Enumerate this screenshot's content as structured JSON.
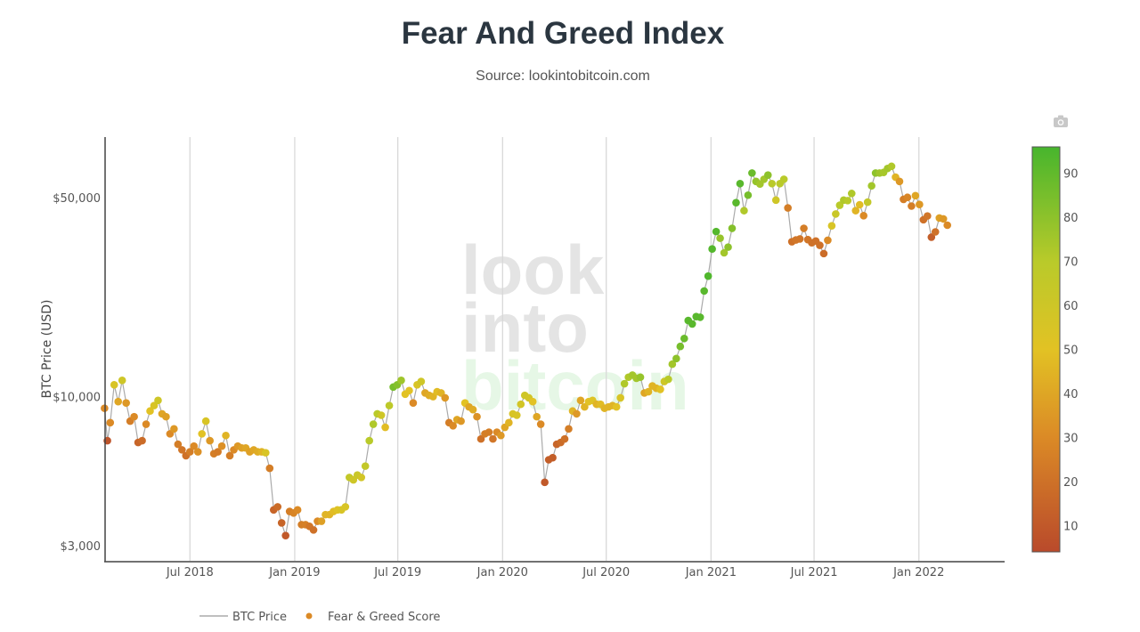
{
  "title": "Fear And Greed Index",
  "subtitle": "Source: lookintobitcoin.com",
  "watermark": [
    "look",
    "into",
    "bitcoin"
  ],
  "toolbar": {
    "icon": "camera-icon"
  },
  "legend": {
    "line": "BTC Price",
    "dots": "Fear & Greed Score"
  },
  "chart_data": {
    "type": "scatter",
    "title": "Fear And Greed Index",
    "ylabel": "BTC Price (USD)",
    "xlabel": "",
    "yscale": "log",
    "xlim": [
      "2018-02-02",
      "2022-05-30"
    ],
    "ylim": [
      2650,
      81000
    ],
    "grid": "vertical gridlines at x ticks",
    "legend_placement": "bottom",
    "x_ticks": [
      {
        "date": "2018-07-01",
        "label": "Jul 2018"
      },
      {
        "date": "2019-01-01",
        "label": "Jan 2019"
      },
      {
        "date": "2019-07-01",
        "label": "Jul 2019"
      },
      {
        "date": "2020-01-01",
        "label": "Jan 2020"
      },
      {
        "date": "2020-07-01",
        "label": "Jul 2020"
      },
      {
        "date": "2021-01-01",
        "label": "Jan 2021"
      },
      {
        "date": "2021-07-01",
        "label": "Jul 2021"
      },
      {
        "date": "2022-01-01",
        "label": "Jan 2022"
      }
    ],
    "y_ticks": [
      {
        "value": 3000,
        "label": "$3,000"
      },
      {
        "value": 10000,
        "label": "$10,000"
      },
      {
        "value": 50000,
        "label": "$50,000"
      }
    ],
    "colorbar": {
      "range": [
        4,
        96
      ],
      "ticks": [
        10,
        20,
        30,
        40,
        50,
        60,
        70,
        80,
        90
      ],
      "colorscale": [
        [
          4,
          "#b94a2b"
        ],
        [
          30,
          "#db8a26"
        ],
        [
          50,
          "#e2c224"
        ],
        [
          70,
          "#b9ca2a"
        ],
        [
          96,
          "#47b52d"
        ]
      ]
    },
    "line_color": "#aaaaaa",
    "series_fields": [
      "date",
      "btc_price",
      "fear_greed_score"
    ],
    "points": [
      [
        "2018-02-01",
        9100,
        30
      ],
      [
        "2018-02-06",
        7000,
        8
      ],
      [
        "2018-02-11",
        8100,
        30
      ],
      [
        "2018-02-18",
        11000,
        55
      ],
      [
        "2018-02-25",
        9600,
        40
      ],
      [
        "2018-03-04",
        11400,
        60
      ],
      [
        "2018-03-11",
        9500,
        35
      ],
      [
        "2018-03-18",
        8200,
        25
      ],
      [
        "2018-03-25",
        8500,
        30
      ],
      [
        "2018-04-01",
        6900,
        15
      ],
      [
        "2018-04-08",
        7000,
        18
      ],
      [
        "2018-04-15",
        8000,
        30
      ],
      [
        "2018-04-22",
        8900,
        50
      ],
      [
        "2018-04-29",
        9300,
        55
      ],
      [
        "2018-05-06",
        9700,
        60
      ],
      [
        "2018-05-13",
        8700,
        40
      ],
      [
        "2018-05-20",
        8500,
        38
      ],
      [
        "2018-05-27",
        7400,
        30
      ],
      [
        "2018-06-03",
        7700,
        35
      ],
      [
        "2018-06-10",
        6800,
        25
      ],
      [
        "2018-06-17",
        6500,
        22
      ],
      [
        "2018-06-24",
        6200,
        20
      ],
      [
        "2018-07-01",
        6400,
        25
      ],
      [
        "2018-07-08",
        6700,
        30
      ],
      [
        "2018-07-15",
        6400,
        32
      ],
      [
        "2018-07-22",
        7400,
        50
      ],
      [
        "2018-07-29",
        8200,
        55
      ],
      [
        "2018-08-05",
        7000,
        35
      ],
      [
        "2018-08-12",
        6300,
        25
      ],
      [
        "2018-08-19",
        6400,
        24
      ],
      [
        "2018-08-26",
        6700,
        32
      ],
      [
        "2018-09-02",
        7300,
        45
      ],
      [
        "2018-09-09",
        6200,
        25
      ],
      [
        "2018-09-16",
        6500,
        30
      ],
      [
        "2018-09-23",
        6700,
        35
      ],
      [
        "2018-09-30",
        6600,
        38
      ],
      [
        "2018-10-07",
        6600,
        40
      ],
      [
        "2018-10-14",
        6400,
        38
      ],
      [
        "2018-10-21",
        6500,
        40
      ],
      [
        "2018-10-28",
        6400,
        42
      ],
      [
        "2018-11-04",
        6400,
        45
      ],
      [
        "2018-11-11",
        6350,
        55
      ],
      [
        "2018-11-18",
        5600,
        25
      ],
      [
        "2018-11-25",
        4000,
        15
      ],
      [
        "2018-12-02",
        4100,
        18
      ],
      [
        "2018-12-09",
        3600,
        15
      ],
      [
        "2018-12-16",
        3250,
        10
      ],
      [
        "2018-12-23",
        3950,
        25
      ],
      [
        "2018-12-30",
        3900,
        28
      ],
      [
        "2019-01-06",
        4000,
        30
      ],
      [
        "2019-01-13",
        3550,
        25
      ],
      [
        "2019-01-20",
        3550,
        26
      ],
      [
        "2019-01-27",
        3500,
        22
      ],
      [
        "2019-02-03",
        3400,
        20
      ],
      [
        "2019-02-10",
        3650,
        30
      ],
      [
        "2019-02-17",
        3650,
        38
      ],
      [
        "2019-02-24",
        3850,
        45
      ],
      [
        "2019-03-03",
        3850,
        45
      ],
      [
        "2019-03-10",
        3950,
        48
      ],
      [
        "2019-03-17",
        4000,
        52
      ],
      [
        "2019-03-24",
        4000,
        55
      ],
      [
        "2019-03-31",
        4100,
        55
      ],
      [
        "2019-04-07",
        5200,
        65
      ],
      [
        "2019-04-14",
        5100,
        60
      ],
      [
        "2019-04-21",
        5300,
        62
      ],
      [
        "2019-04-28",
        5200,
        58
      ],
      [
        "2019-05-05",
        5700,
        65
      ],
      [
        "2019-05-12",
        7000,
        70
      ],
      [
        "2019-05-19",
        8000,
        72
      ],
      [
        "2019-05-26",
        8700,
        70
      ],
      [
        "2019-06-02",
        8600,
        60
      ],
      [
        "2019-06-09",
        7800,
        48
      ],
      [
        "2019-06-16",
        9300,
        68
      ],
      [
        "2019-06-23",
        10800,
        85
      ],
      [
        "2019-06-30",
        11000,
        82
      ],
      [
        "2019-07-07",
        11400,
        76
      ],
      [
        "2019-07-14",
        10200,
        50
      ],
      [
        "2019-07-21",
        10500,
        50
      ],
      [
        "2019-07-28",
        9500,
        30
      ],
      [
        "2019-08-04",
        11000,
        55
      ],
      [
        "2019-08-11",
        11300,
        60
      ],
      [
        "2019-08-18",
        10300,
        40
      ],
      [
        "2019-08-25",
        10100,
        42
      ],
      [
        "2019-09-01",
        10000,
        45
      ],
      [
        "2019-09-08",
        10400,
        48
      ],
      [
        "2019-09-15",
        10300,
        45
      ],
      [
        "2019-09-22",
        9900,
        35
      ],
      [
        "2019-09-29",
        8100,
        25
      ],
      [
        "2019-10-06",
        7900,
        30
      ],
      [
        "2019-10-13",
        8300,
        40
      ],
      [
        "2019-10-20",
        8200,
        35
      ],
      [
        "2019-10-27",
        9500,
        50
      ],
      [
        "2019-11-03",
        9200,
        40
      ],
      [
        "2019-11-10",
        9000,
        42
      ],
      [
        "2019-11-17",
        8500,
        33
      ],
      [
        "2019-11-24",
        7100,
        20
      ],
      [
        "2019-12-01",
        7400,
        25
      ],
      [
        "2019-12-08",
        7500,
        25
      ],
      [
        "2019-12-15",
        7100,
        22
      ],
      [
        "2019-12-22",
        7500,
        30
      ],
      [
        "2019-12-29",
        7300,
        35
      ],
      [
        "2020-01-05",
        7800,
        40
      ],
      [
        "2020-01-12",
        8100,
        45
      ],
      [
        "2020-01-19",
        8700,
        55
      ],
      [
        "2020-01-26",
        8600,
        55
      ],
      [
        "2020-02-02",
        9400,
        58
      ],
      [
        "2020-02-09",
        10100,
        60
      ],
      [
        "2020-02-16",
        9900,
        58
      ],
      [
        "2020-02-23",
        9600,
        50
      ],
      [
        "2020-03-01",
        8500,
        40
      ],
      [
        "2020-03-08",
        8000,
        30
      ],
      [
        "2020-03-15",
        5000,
        10
      ],
      [
        "2020-03-22",
        6000,
        12
      ],
      [
        "2020-03-29",
        6100,
        12
      ],
      [
        "2020-04-05",
        6800,
        15
      ],
      [
        "2020-04-12",
        6900,
        18
      ],
      [
        "2020-04-19",
        7100,
        20
      ],
      [
        "2020-04-26",
        7700,
        25
      ],
      [
        "2020-05-03",
        8900,
        45
      ],
      [
        "2020-05-10",
        8700,
        35
      ],
      [
        "2020-05-17",
        9700,
        40
      ],
      [
        "2020-05-24",
        9200,
        45
      ],
      [
        "2020-05-31",
        9600,
        50
      ],
      [
        "2020-06-07",
        9700,
        52
      ],
      [
        "2020-06-14",
        9400,
        45
      ],
      [
        "2020-06-21",
        9400,
        48
      ],
      [
        "2020-06-28",
        9100,
        45
      ],
      [
        "2020-07-05",
        9200,
        45
      ],
      [
        "2020-07-12",
        9300,
        45
      ],
      [
        "2020-07-19",
        9200,
        50
      ],
      [
        "2020-07-26",
        9900,
        55
      ],
      [
        "2020-08-02",
        11100,
        72
      ],
      [
        "2020-08-09",
        11700,
        72
      ],
      [
        "2020-08-16",
        11900,
        75
      ],
      [
        "2020-08-23",
        11600,
        75
      ],
      [
        "2020-08-30",
        11700,
        78
      ],
      [
        "2020-09-06",
        10300,
        40
      ],
      [
        "2020-09-13",
        10400,
        45
      ],
      [
        "2020-09-20",
        10900,
        45
      ],
      [
        "2020-09-27",
        10700,
        45
      ],
      [
        "2020-10-04",
        10600,
        50
      ],
      [
        "2020-10-11",
        11300,
        60
      ],
      [
        "2020-10-18",
        11500,
        70
      ],
      [
        "2020-10-25",
        13000,
        75
      ],
      [
        "2020-11-01",
        13600,
        80
      ],
      [
        "2020-11-08",
        15000,
        85
      ],
      [
        "2020-11-15",
        16000,
        88
      ],
      [
        "2020-11-22",
        18500,
        92
      ],
      [
        "2020-11-29",
        18000,
        92
      ],
      [
        "2020-12-06",
        19100,
        92
      ],
      [
        "2020-12-13",
        19000,
        92
      ],
      [
        "2020-12-20",
        23500,
        92
      ],
      [
        "2020-12-27",
        26500,
        94
      ],
      [
        "2021-01-03",
        33000,
        93
      ],
      [
        "2021-01-10",
        38000,
        93
      ],
      [
        "2021-01-17",
        36000,
        78
      ],
      [
        "2021-01-24",
        32000,
        75
      ],
      [
        "2021-01-31",
        33500,
        80
      ],
      [
        "2021-02-07",
        39000,
        82
      ],
      [
        "2021-02-14",
        48000,
        92
      ],
      [
        "2021-02-21",
        56000,
        92
      ],
      [
        "2021-02-28",
        45000,
        72
      ],
      [
        "2021-03-07",
        51000,
        85
      ],
      [
        "2021-03-14",
        61000,
        88
      ],
      [
        "2021-03-21",
        57000,
        78
      ],
      [
        "2021-03-28",
        55800,
        75
      ],
      [
        "2021-04-04",
        58000,
        75
      ],
      [
        "2021-04-11",
        60000,
        80
      ],
      [
        "2021-04-18",
        56000,
        70
      ],
      [
        "2021-04-25",
        49000,
        60
      ],
      [
        "2021-05-02",
        56000,
        70
      ],
      [
        "2021-05-09",
        58000,
        70
      ],
      [
        "2021-05-16",
        46000,
        25
      ],
      [
        "2021-05-23",
        35000,
        20
      ],
      [
        "2021-05-30",
        35500,
        22
      ],
      [
        "2021-06-06",
        35800,
        22
      ],
      [
        "2021-06-13",
        39000,
        25
      ],
      [
        "2021-06-20",
        35600,
        22
      ],
      [
        "2021-06-27",
        34700,
        20
      ],
      [
        "2021-07-04",
        35200,
        20
      ],
      [
        "2021-07-11",
        34000,
        20
      ],
      [
        "2021-07-18",
        31800,
        18
      ],
      [
        "2021-07-25",
        35400,
        30
      ],
      [
        "2021-08-01",
        39800,
        55
      ],
      [
        "2021-08-08",
        43800,
        62
      ],
      [
        "2021-08-15",
        47000,
        70
      ],
      [
        "2021-08-22",
        49000,
        72
      ],
      [
        "2021-08-29",
        48800,
        70
      ],
      [
        "2021-09-05",
        51700,
        72
      ],
      [
        "2021-09-12",
        45000,
        45
      ],
      [
        "2021-09-19",
        47200,
        48
      ],
      [
        "2021-09-26",
        43200,
        30
      ],
      [
        "2021-10-03",
        48200,
        65
      ],
      [
        "2021-10-10",
        55000,
        75
      ],
      [
        "2021-10-17",
        61000,
        80
      ],
      [
        "2021-10-24",
        61000,
        76
      ],
      [
        "2021-10-31",
        61300,
        74
      ],
      [
        "2021-11-07",
        63300,
        75
      ],
      [
        "2021-11-14",
        64400,
        72
      ],
      [
        "2021-11-21",
        59000,
        45
      ],
      [
        "2021-11-28",
        57000,
        35
      ],
      [
        "2021-12-05",
        49300,
        25
      ],
      [
        "2021-12-12",
        50100,
        28
      ],
      [
        "2021-12-19",
        46700,
        25
      ],
      [
        "2021-12-26",
        50800,
        40
      ],
      [
        "2022-01-02",
        47300,
        35
      ],
      [
        "2022-01-09",
        41800,
        20
      ],
      [
        "2022-01-16",
        43100,
        22
      ],
      [
        "2022-01-23",
        36300,
        12
      ],
      [
        "2022-01-30",
        37900,
        20
      ],
      [
        "2022-02-06",
        42400,
        38
      ],
      [
        "2022-02-13",
        42100,
        35
      ],
      [
        "2022-02-20",
        40000,
        30
      ]
    ]
  }
}
